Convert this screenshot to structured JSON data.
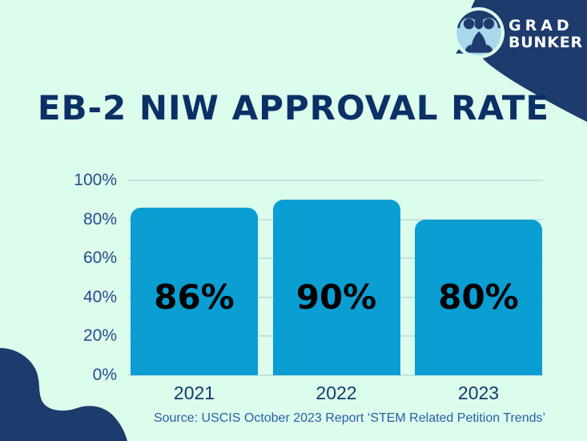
{
  "title": "EB-2 NIW APPROVAL RATE",
  "logo": {
    "line1": "GRAD",
    "line2": "BUNKER",
    "icon": "owl-icon"
  },
  "source": "Source: USCIS October 2023 Report ‘STEM Related Petition Trends’",
  "colors": {
    "mint": "#dcfcec",
    "navy": "#1e3b6e",
    "title_navy": "#0b3066",
    "bar": "#0a9ed3",
    "grid": "#c3e2df",
    "tick": "#2a4b8d",
    "xlabel": "#16396d",
    "source": "#2a5ea7",
    "label_black": "#000000",
    "owlblue": "#a8d8e9",
    "white": "#ffffff"
  },
  "chart_data": {
    "type": "bar",
    "title": "EB-2 NIW APPROVAL RATE",
    "categories": [
      "2021",
      "2022",
      "2023"
    ],
    "values": [
      86,
      90,
      80
    ],
    "data_labels": [
      "86%",
      "90%",
      "80%"
    ],
    "y_ticks": [
      "100%",
      "80%",
      "60%",
      "40%",
      "20%",
      "0%"
    ],
    "ylim": [
      0,
      100
    ],
    "xlabel": "",
    "ylabel": "",
    "grid": true,
    "legend": false,
    "bar_color": "#0a9ed3",
    "source_note": "Source: USCIS October 2023 Report ‘STEM Related Petition Trends’"
  }
}
